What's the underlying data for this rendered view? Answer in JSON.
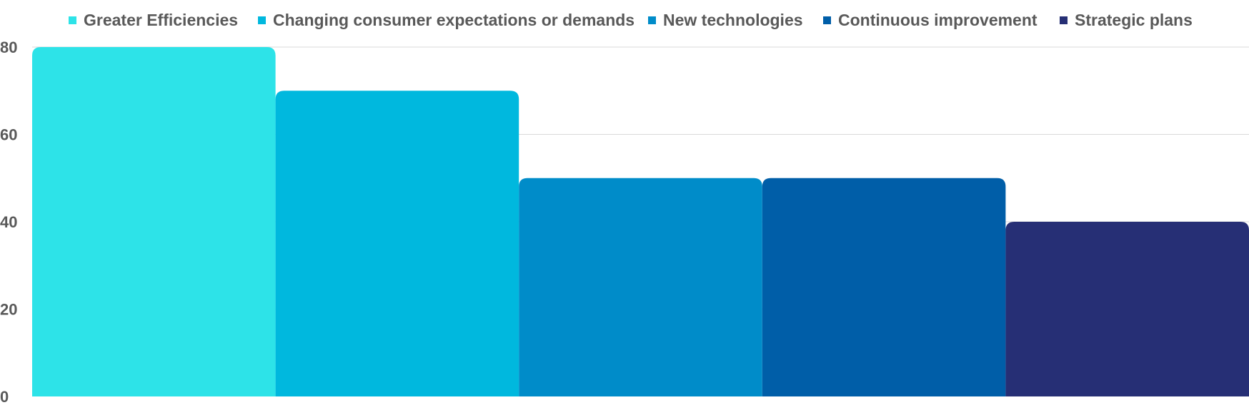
{
  "chart_data": {
    "type": "bar",
    "title": "",
    "xlabel": "",
    "ylabel": "",
    "categories": [
      ""
    ],
    "series": [
      {
        "name": "Greater Efficiencies",
        "values": [
          80
        ],
        "color": "#2DE3E8"
      },
      {
        "name": "Changing consumer expectations or demands",
        "values": [
          70
        ],
        "color": "#00B8DE"
      },
      {
        "name": "New technologies",
        "values": [
          50
        ],
        "color": "#008CC9"
      },
      {
        "name": "Continuous improvement",
        "values": [
          50
        ],
        "color": "#005EA8"
      },
      {
        "name": "Strategic plans",
        "values": [
          40
        ],
        "color": "#262F75"
      }
    ],
    "ylim": [
      0,
      80
    ],
    "yticks": [
      "0",
      "20",
      "40",
      "60",
      "80"
    ],
    "grid": true,
    "legend_position": "top"
  }
}
